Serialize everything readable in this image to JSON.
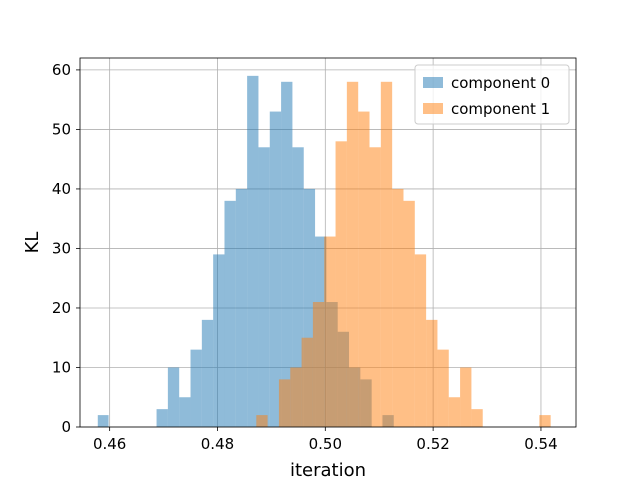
{
  "chart_data": {
    "type": "bar",
    "subtype": "overlapping-histogram",
    "xlabel": "iteration",
    "ylabel": "KL",
    "xlim": [
      0.4545,
      0.5465
    ],
    "ylim": [
      0,
      62
    ],
    "xticks": [
      0.46,
      0.48,
      0.5,
      0.52,
      0.54
    ],
    "xtick_labels": [
      "0.46",
      "0.48",
      "0.50",
      "0.52",
      "0.54"
    ],
    "yticks": [
      0,
      10,
      20,
      30,
      40,
      50,
      60
    ],
    "ytick_labels": [
      "0",
      "10",
      "20",
      "30",
      "40",
      "50",
      "60"
    ],
    "grid": true,
    "legend_position": "top-right",
    "series": [
      {
        "name": "component 0",
        "color": "#1f77b4",
        "alpha": 0.5,
        "bins": [
          {
            "x0": 0.4578,
            "x1": 0.4598,
            "count": 2
          },
          {
            "x0": 0.4687,
            "x1": 0.4708,
            "count": 3
          },
          {
            "x0": 0.4708,
            "x1": 0.4729,
            "count": 10
          },
          {
            "x0": 0.4729,
            "x1": 0.475,
            "count": 5
          },
          {
            "x0": 0.475,
            "x1": 0.4771,
            "count": 13
          },
          {
            "x0": 0.4771,
            "x1": 0.4792,
            "count": 18
          },
          {
            "x0": 0.4792,
            "x1": 0.4813,
            "count": 29
          },
          {
            "x0": 0.4813,
            "x1": 0.4834,
            "count": 38
          },
          {
            "x0": 0.4834,
            "x1": 0.4855,
            "count": 40
          },
          {
            "x0": 0.4855,
            "x1": 0.4876,
            "count": 59
          },
          {
            "x0": 0.4876,
            "x1": 0.4897,
            "count": 47
          },
          {
            "x0": 0.4897,
            "x1": 0.4918,
            "count": 53
          },
          {
            "x0": 0.4918,
            "x1": 0.4939,
            "count": 58
          },
          {
            "x0": 0.4939,
            "x1": 0.496,
            "count": 47
          },
          {
            "x0": 0.496,
            "x1": 0.4981,
            "count": 40
          },
          {
            "x0": 0.4981,
            "x1": 0.5002,
            "count": 32
          },
          {
            "x0": 0.5002,
            "x1": 0.5023,
            "count": 21
          },
          {
            "x0": 0.5023,
            "x1": 0.5044,
            "count": 16
          },
          {
            "x0": 0.5044,
            "x1": 0.5065,
            "count": 10
          },
          {
            "x0": 0.5065,
            "x1": 0.5086,
            "count": 8
          },
          {
            "x0": 0.5106,
            "x1": 0.5127,
            "count": 2
          }
        ]
      },
      {
        "name": "component 1",
        "color": "#ff7f0e",
        "alpha": 0.5,
        "bins": [
          {
            "x0": 0.4872,
            "x1": 0.4893,
            "count": 2
          },
          {
            "x0": 0.4914,
            "x1": 0.4935,
            "count": 8
          },
          {
            "x0": 0.4935,
            "x1": 0.4956,
            "count": 10
          },
          {
            "x0": 0.4956,
            "x1": 0.4977,
            "count": 15
          },
          {
            "x0": 0.4977,
            "x1": 0.4998,
            "count": 21
          },
          {
            "x0": 0.4998,
            "x1": 0.5019,
            "count": 32
          },
          {
            "x0": 0.5019,
            "x1": 0.504,
            "count": 48
          },
          {
            "x0": 0.504,
            "x1": 0.5061,
            "count": 58
          },
          {
            "x0": 0.5061,
            "x1": 0.5082,
            "count": 53
          },
          {
            "x0": 0.5082,
            "x1": 0.5103,
            "count": 47
          },
          {
            "x0": 0.5103,
            "x1": 0.5124,
            "count": 58
          },
          {
            "x0": 0.5124,
            "x1": 0.5145,
            "count": 40
          },
          {
            "x0": 0.5145,
            "x1": 0.5166,
            "count": 38
          },
          {
            "x0": 0.5166,
            "x1": 0.5187,
            "count": 29
          },
          {
            "x0": 0.5187,
            "x1": 0.5208,
            "count": 18
          },
          {
            "x0": 0.5208,
            "x1": 0.5229,
            "count": 13
          },
          {
            "x0": 0.5229,
            "x1": 0.525,
            "count": 5
          },
          {
            "x0": 0.525,
            "x1": 0.5271,
            "count": 10
          },
          {
            "x0": 0.5271,
            "x1": 0.5292,
            "count": 3
          },
          {
            "x0": 0.5397,
            "x1": 0.5418,
            "count": 2
          }
        ]
      }
    ]
  }
}
